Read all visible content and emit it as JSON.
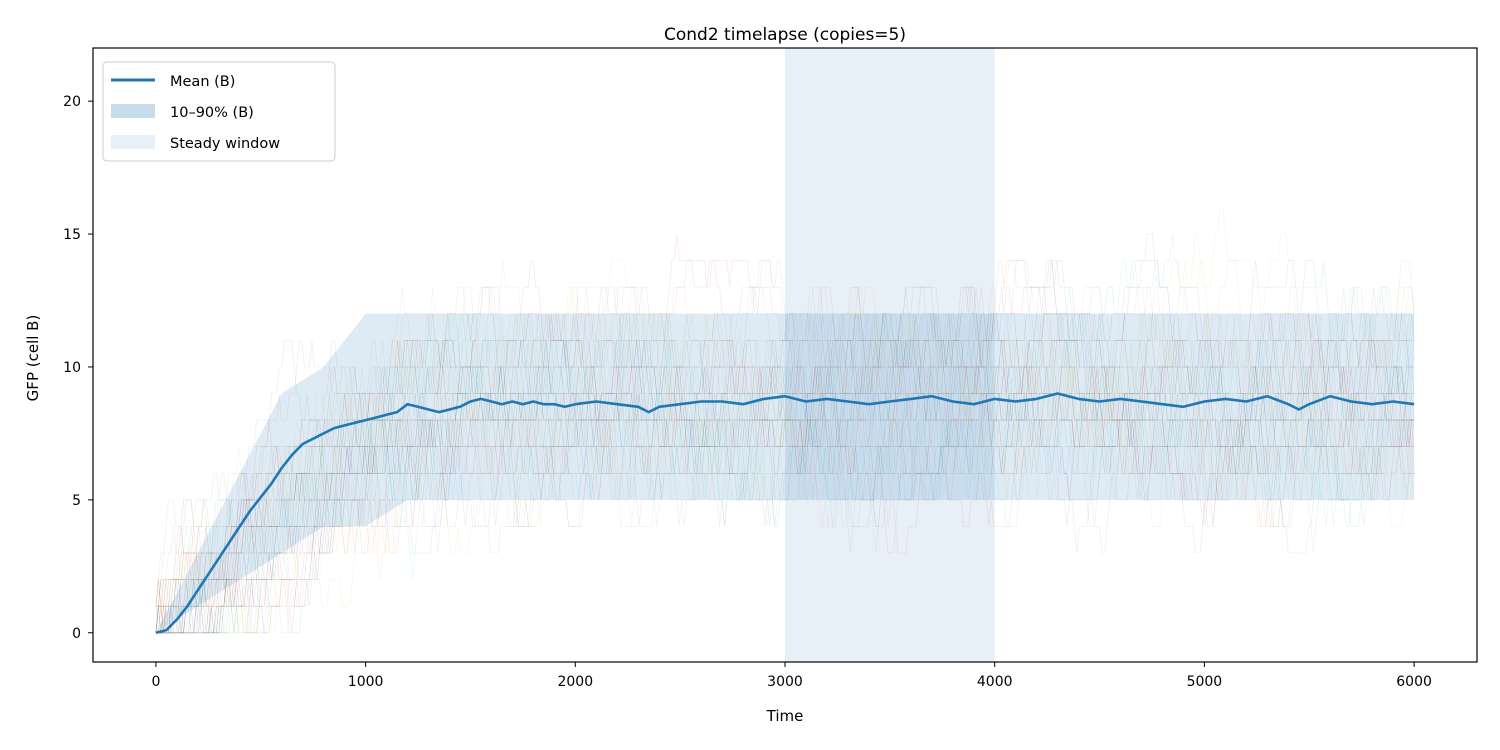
{
  "chart_data": {
    "type": "line",
    "title": "Cond2 timelapse (copies=5)",
    "xlabel": "Time",
    "ylabel": "GFP (cell B)",
    "xlim": [
      -300,
      6300
    ],
    "ylim": [
      -1.1,
      22
    ],
    "xticks": [
      0,
      1000,
      2000,
      3000,
      4000,
      5000,
      6000
    ],
    "yticks": [
      0,
      5,
      10,
      15,
      20
    ],
    "grid": false,
    "legend_position": "top-left",
    "legend": [
      "Mean (B)",
      "10–90% (B)",
      "Steady window"
    ],
    "colors": {
      "mean": "#1f77b4",
      "band": "#1f77b4",
      "steady_window": "#cfe0f0",
      "trace_palette": [
        "#1f77b4",
        "#ff7f0e",
        "#2ca02c",
        "#d62728",
        "#9467bd",
        "#8c564b",
        "#e377c2",
        "#7f7f7f",
        "#bcbd22",
        "#17becf"
      ]
    },
    "steady_window": {
      "label": "Steady window",
      "x_start": 3000,
      "x_end": 4000
    },
    "band": {
      "label": "10–90% (B)",
      "x": [
        0,
        200,
        400,
        600,
        800,
        1000,
        1200,
        1500,
        2000,
        3000,
        4000,
        5000,
        6000
      ],
      "low": [
        0,
        1,
        2,
        3,
        4,
        4,
        5,
        5,
        5,
        5,
        5,
        5,
        5
      ],
      "high": [
        0,
        3,
        6,
        9,
        10,
        12,
        12,
        12,
        12,
        12,
        12,
        12,
        12
      ]
    },
    "series": [
      {
        "name": "Mean (B)",
        "x": [
          0,
          50,
          100,
          150,
          200,
          250,
          300,
          350,
          400,
          450,
          500,
          550,
          600,
          650,
          700,
          750,
          800,
          850,
          900,
          950,
          1000,
          1050,
          1100,
          1150,
          1200,
          1250,
          1300,
          1350,
          1400,
          1450,
          1500,
          1550,
          1600,
          1650,
          1700,
          1750,
          1800,
          1850,
          1900,
          1950,
          2000,
          2100,
          2200,
          2300,
          2350,
          2400,
          2500,
          2600,
          2700,
          2800,
          2900,
          3000,
          3100,
          3200,
          3300,
          3400,
          3500,
          3600,
          3700,
          3800,
          3900,
          4000,
          4100,
          4200,
          4300,
          4400,
          4500,
          4600,
          4700,
          4800,
          4900,
          5000,
          5100,
          5200,
          5300,
          5400,
          5450,
          5500,
          5600,
          5700,
          5800,
          5900,
          6000
        ],
        "values": [
          0.0,
          0.1,
          0.5,
          1.0,
          1.6,
          2.2,
          2.8,
          3.4,
          4.0,
          4.6,
          5.1,
          5.6,
          6.2,
          6.7,
          7.1,
          7.3,
          7.5,
          7.7,
          7.8,
          7.9,
          8.0,
          8.1,
          8.2,
          8.3,
          8.6,
          8.5,
          8.4,
          8.3,
          8.4,
          8.5,
          8.7,
          8.8,
          8.7,
          8.6,
          8.7,
          8.6,
          8.7,
          8.6,
          8.6,
          8.5,
          8.6,
          8.7,
          8.6,
          8.5,
          8.3,
          8.5,
          8.6,
          8.7,
          8.7,
          8.6,
          8.8,
          8.9,
          8.7,
          8.8,
          8.7,
          8.6,
          8.7,
          8.8,
          8.9,
          8.7,
          8.6,
          8.8,
          8.7,
          8.8,
          9.0,
          8.8,
          8.7,
          8.8,
          8.7,
          8.6,
          8.5,
          8.7,
          8.8,
          8.7,
          8.9,
          8.6,
          8.4,
          8.6,
          8.9,
          8.7,
          8.6,
          8.7,
          8.6
        ]
      }
    ]
  }
}
